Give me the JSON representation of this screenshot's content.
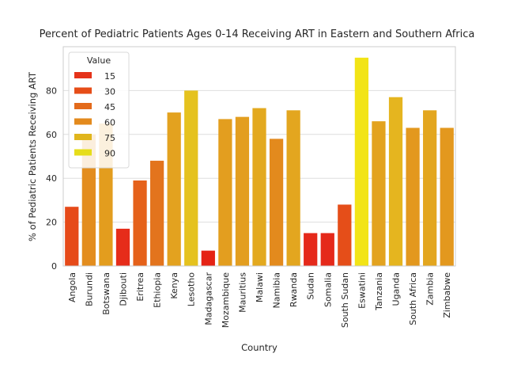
{
  "chart_data": {
    "type": "bar",
    "title": "Percent of Pediatric Patients Ages 0-14 Receiving ART in Eastern and Southern Africa",
    "xlabel": "Country",
    "ylabel": "% of Pediatric Patients Receiving ART",
    "ylim": [
      0,
      100
    ],
    "yticks": [
      0,
      20,
      40,
      60,
      80
    ],
    "grid": "horizontal",
    "categories": [
      "Angola",
      "Burundi",
      "Botswana",
      "Djibouti",
      "Eritrea",
      "Ethiopia",
      "Kenya",
      "Lesotho",
      "Madagascar",
      "Mozambique",
      "Mauritius",
      "Malawi",
      "Namibia",
      "Rwanda",
      "Sudan",
      "Somalia",
      "South Sudan",
      "Eswatini",
      "Tanzania",
      "Uganda",
      "South Africa",
      "Zambia",
      "Zimbabwe"
    ],
    "values": [
      27,
      60,
      65,
      17,
      39,
      48,
      70,
      80,
      7,
      67,
      68,
      72,
      58,
      71,
      15,
      15,
      28,
      95,
      66,
      77,
      63,
      71,
      63
    ],
    "legend": {
      "title": "Value",
      "placement": "top-left",
      "entries": [
        {
          "label": "15",
          "color": "#e5331a"
        },
        {
          "label": "30",
          "color": "#e64d18"
        },
        {
          "label": "45",
          "color": "#e36a1b"
        },
        {
          "label": "60",
          "color": "#e38a1d"
        },
        {
          "label": "75",
          "color": "#e0b51c"
        },
        {
          "label": "90",
          "color": "#e6dd1a"
        }
      ]
    },
    "colors": [
      "#e64a19",
      "#e38d1e",
      "#e39d1e",
      "#e62c1a",
      "#e5611a",
      "#e3741d",
      "#e3a21f",
      "#e5c21e",
      "#e52315",
      "#e39e1f",
      "#e39e1f",
      "#e3a91f",
      "#e38a1d",
      "#e3a61f",
      "#e5291a",
      "#e5291a",
      "#e54e19",
      "#f2e416",
      "#e3a31f",
      "#e5b51f",
      "#e3981e",
      "#e3a61f",
      "#e3981e"
    ]
  }
}
